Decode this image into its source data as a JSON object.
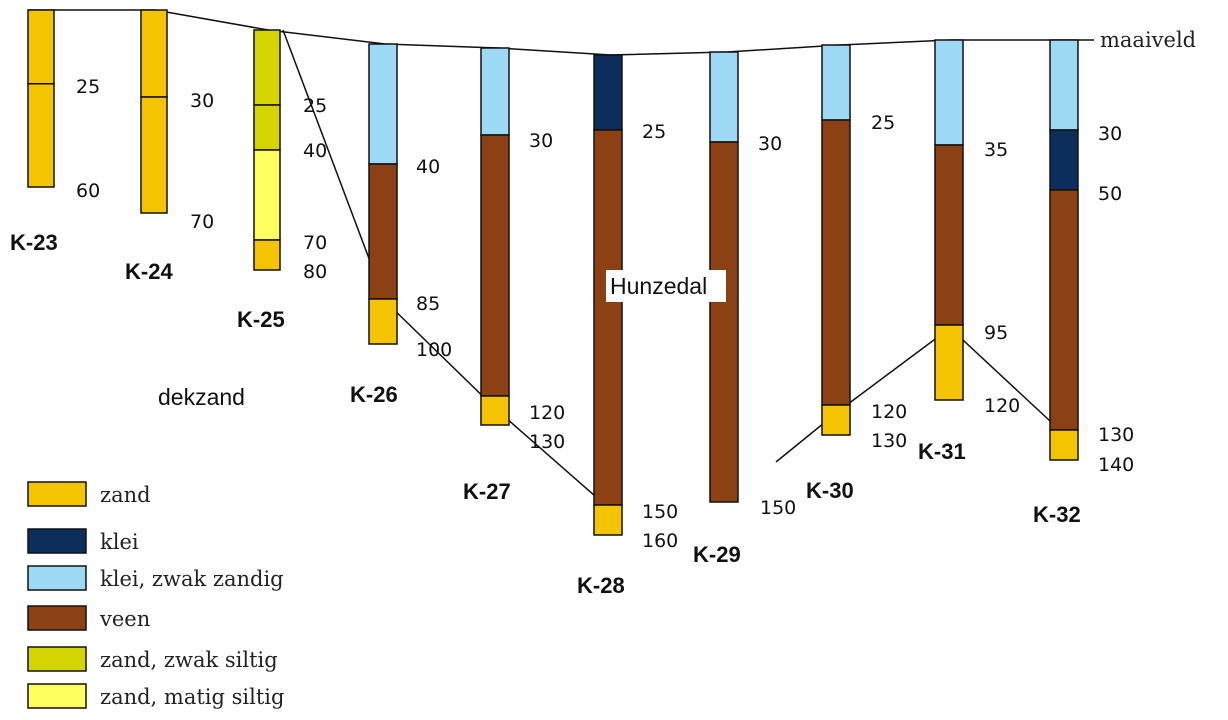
{
  "colors": {
    "zand": "#f5c400",
    "klei": "#0d2e5c",
    "klei_zwak_zandig": "#9dd9f5",
    "veen": "#8b4113",
    "zand_zwak_siltig": "#d4d400",
    "zand_matig_siltig": "#ffff60"
  },
  "labels": {
    "maaiveld": "maaiveld",
    "dekzand": "dekzand",
    "hunzedal": "Hunzedal"
  },
  "legend": [
    {
      "key": "zand",
      "label": "zand"
    },
    {
      "key": "klei",
      "label": "klei"
    },
    {
      "key": "klei_zwak_zandig",
      "label": "klei, zwak zandig"
    },
    {
      "key": "veen",
      "label": "veen"
    },
    {
      "key": "zand_zwak_siltig",
      "label": "zand, zwak siltig"
    },
    {
      "key": "zand_matig_siltig",
      "label": "zand, matig siltig"
    }
  ],
  "cores": [
    {
      "name": "K-23",
      "layers": [
        {
          "from": 0,
          "to": 25,
          "type": "zand"
        },
        {
          "from": 25,
          "to": 60,
          "type": "zand"
        }
      ],
      "depth_labels": [
        "25",
        "60"
      ]
    },
    {
      "name": "K-24",
      "layers": [
        {
          "from": 0,
          "to": 30,
          "type": "zand"
        },
        {
          "from": 30,
          "to": 70,
          "type": "zand"
        }
      ],
      "depth_labels": [
        "30",
        "70"
      ]
    },
    {
      "name": "K-25",
      "layers": [
        {
          "from": 0,
          "to": 25,
          "type": "zand_zwak_siltig"
        },
        {
          "from": 25,
          "to": 40,
          "type": "zand_zwak_siltig"
        },
        {
          "from": 40,
          "to": 70,
          "type": "zand_matig_siltig"
        },
        {
          "from": 70,
          "to": 80,
          "type": "zand"
        }
      ],
      "depth_labels": [
        "25",
        "40",
        "70",
        "80"
      ]
    },
    {
      "name": "K-26",
      "layers": [
        {
          "from": 0,
          "to": 40,
          "type": "klei_zwak_zandig"
        },
        {
          "from": 40,
          "to": 85,
          "type": "veen"
        },
        {
          "from": 85,
          "to": 100,
          "type": "zand"
        }
      ],
      "depth_labels": [
        "40",
        "85",
        "100"
      ]
    },
    {
      "name": "K-27",
      "layers": [
        {
          "from": 0,
          "to": 30,
          "type": "klei_zwak_zandig"
        },
        {
          "from": 30,
          "to": 120,
          "type": "veen"
        },
        {
          "from": 120,
          "to": 130,
          "type": "zand"
        }
      ],
      "depth_labels": [
        "30",
        "120",
        "130"
      ]
    },
    {
      "name": "K-28",
      "layers": [
        {
          "from": 0,
          "to": 25,
          "type": "klei"
        },
        {
          "from": 25,
          "to": 150,
          "type": "veen"
        },
        {
          "from": 150,
          "to": 160,
          "type": "zand"
        }
      ],
      "depth_labels": [
        "25",
        "150",
        "160"
      ]
    },
    {
      "name": "K-29",
      "layers": [
        {
          "from": 0,
          "to": 30,
          "type": "klei_zwak_zandig"
        },
        {
          "from": 30,
          "to": 150,
          "type": "veen"
        }
      ],
      "depth_labels": [
        "30",
        "150"
      ]
    },
    {
      "name": "K-30",
      "layers": [
        {
          "from": 0,
          "to": 25,
          "type": "klei_zwak_zandig"
        },
        {
          "from": 25,
          "to": 120,
          "type": "veen"
        },
        {
          "from": 120,
          "to": 130,
          "type": "zand"
        }
      ],
      "depth_labels": [
        "25",
        "120",
        "130"
      ]
    },
    {
      "name": "K-31",
      "layers": [
        {
          "from": 0,
          "to": 35,
          "type": "klei_zwak_zandig"
        },
        {
          "from": 35,
          "to": 95,
          "type": "veen"
        },
        {
          "from": 95,
          "to": 120,
          "type": "zand"
        }
      ],
      "depth_labels": [
        "35",
        "95",
        "120"
      ]
    },
    {
      "name": "K-32",
      "layers": [
        {
          "from": 0,
          "to": 30,
          "type": "klei_zwak_zandig"
        },
        {
          "from": 30,
          "to": 50,
          "type": "klei"
        },
        {
          "from": 50,
          "to": 130,
          "type": "veen"
        },
        {
          "from": 130,
          "to": 140,
          "type": "zand"
        }
      ],
      "depth_labels": [
        "30",
        "50",
        "130",
        "140"
      ]
    }
  ]
}
